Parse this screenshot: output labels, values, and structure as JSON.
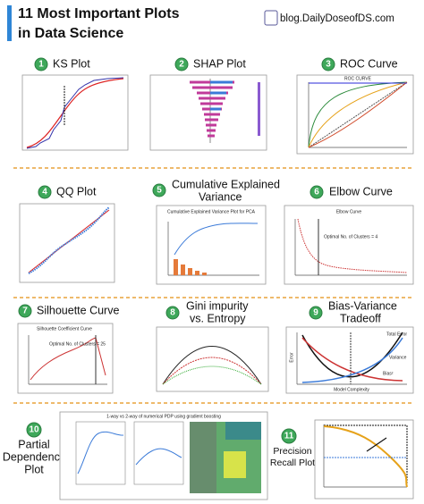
{
  "header": {
    "title_line1": "11 Most Important Plots",
    "title_line2": "in Data Science",
    "site": "blog.DailyDoseofDS.com"
  },
  "panels": [
    {
      "number": "1",
      "title": [
        "KS Plot"
      ]
    },
    {
      "number": "2",
      "title": [
        "SHAP Plot"
      ]
    },
    {
      "number": "3",
      "title": [
        "ROC Curve"
      ],
      "labels": [
        "ROC CURVE"
      ]
    },
    {
      "number": "4",
      "title": [
        "QQ Plot"
      ]
    },
    {
      "number": "5",
      "title": [
        "Cumulative Explained",
        "Variance"
      ],
      "labels": [
        "Cumulative Explained Variance Plot for PCA"
      ]
    },
    {
      "number": "6",
      "title": [
        "Elbow Curve"
      ],
      "labels": [
        "Elbow Curve",
        "Optimal No. of Clusters = 4"
      ]
    },
    {
      "number": "7",
      "title": [
        "Silhouette Curve"
      ],
      "labels": [
        "Silhouette Coefficient Curve",
        "Optimal No. of Clusters = 25"
      ]
    },
    {
      "number": "8",
      "title": [
        "Gini impurity",
        "vs. Entropy"
      ]
    },
    {
      "number": "9",
      "title": [
        "Bias-Variance",
        "Tradeoff"
      ],
      "labels": [
        "Total Error",
        "Variance",
        "Bias²",
        "Model Complexity",
        "Error"
      ]
    },
    {
      "number": "10",
      "title": [
        "Partial",
        "Dependency",
        "Plot"
      ],
      "labels": [
        "1-way vs 2-way of numerical PDP using gradient boosting"
      ]
    },
    {
      "number": "11",
      "title": [
        "Precision",
        "Recall Plot"
      ]
    }
  ]
}
